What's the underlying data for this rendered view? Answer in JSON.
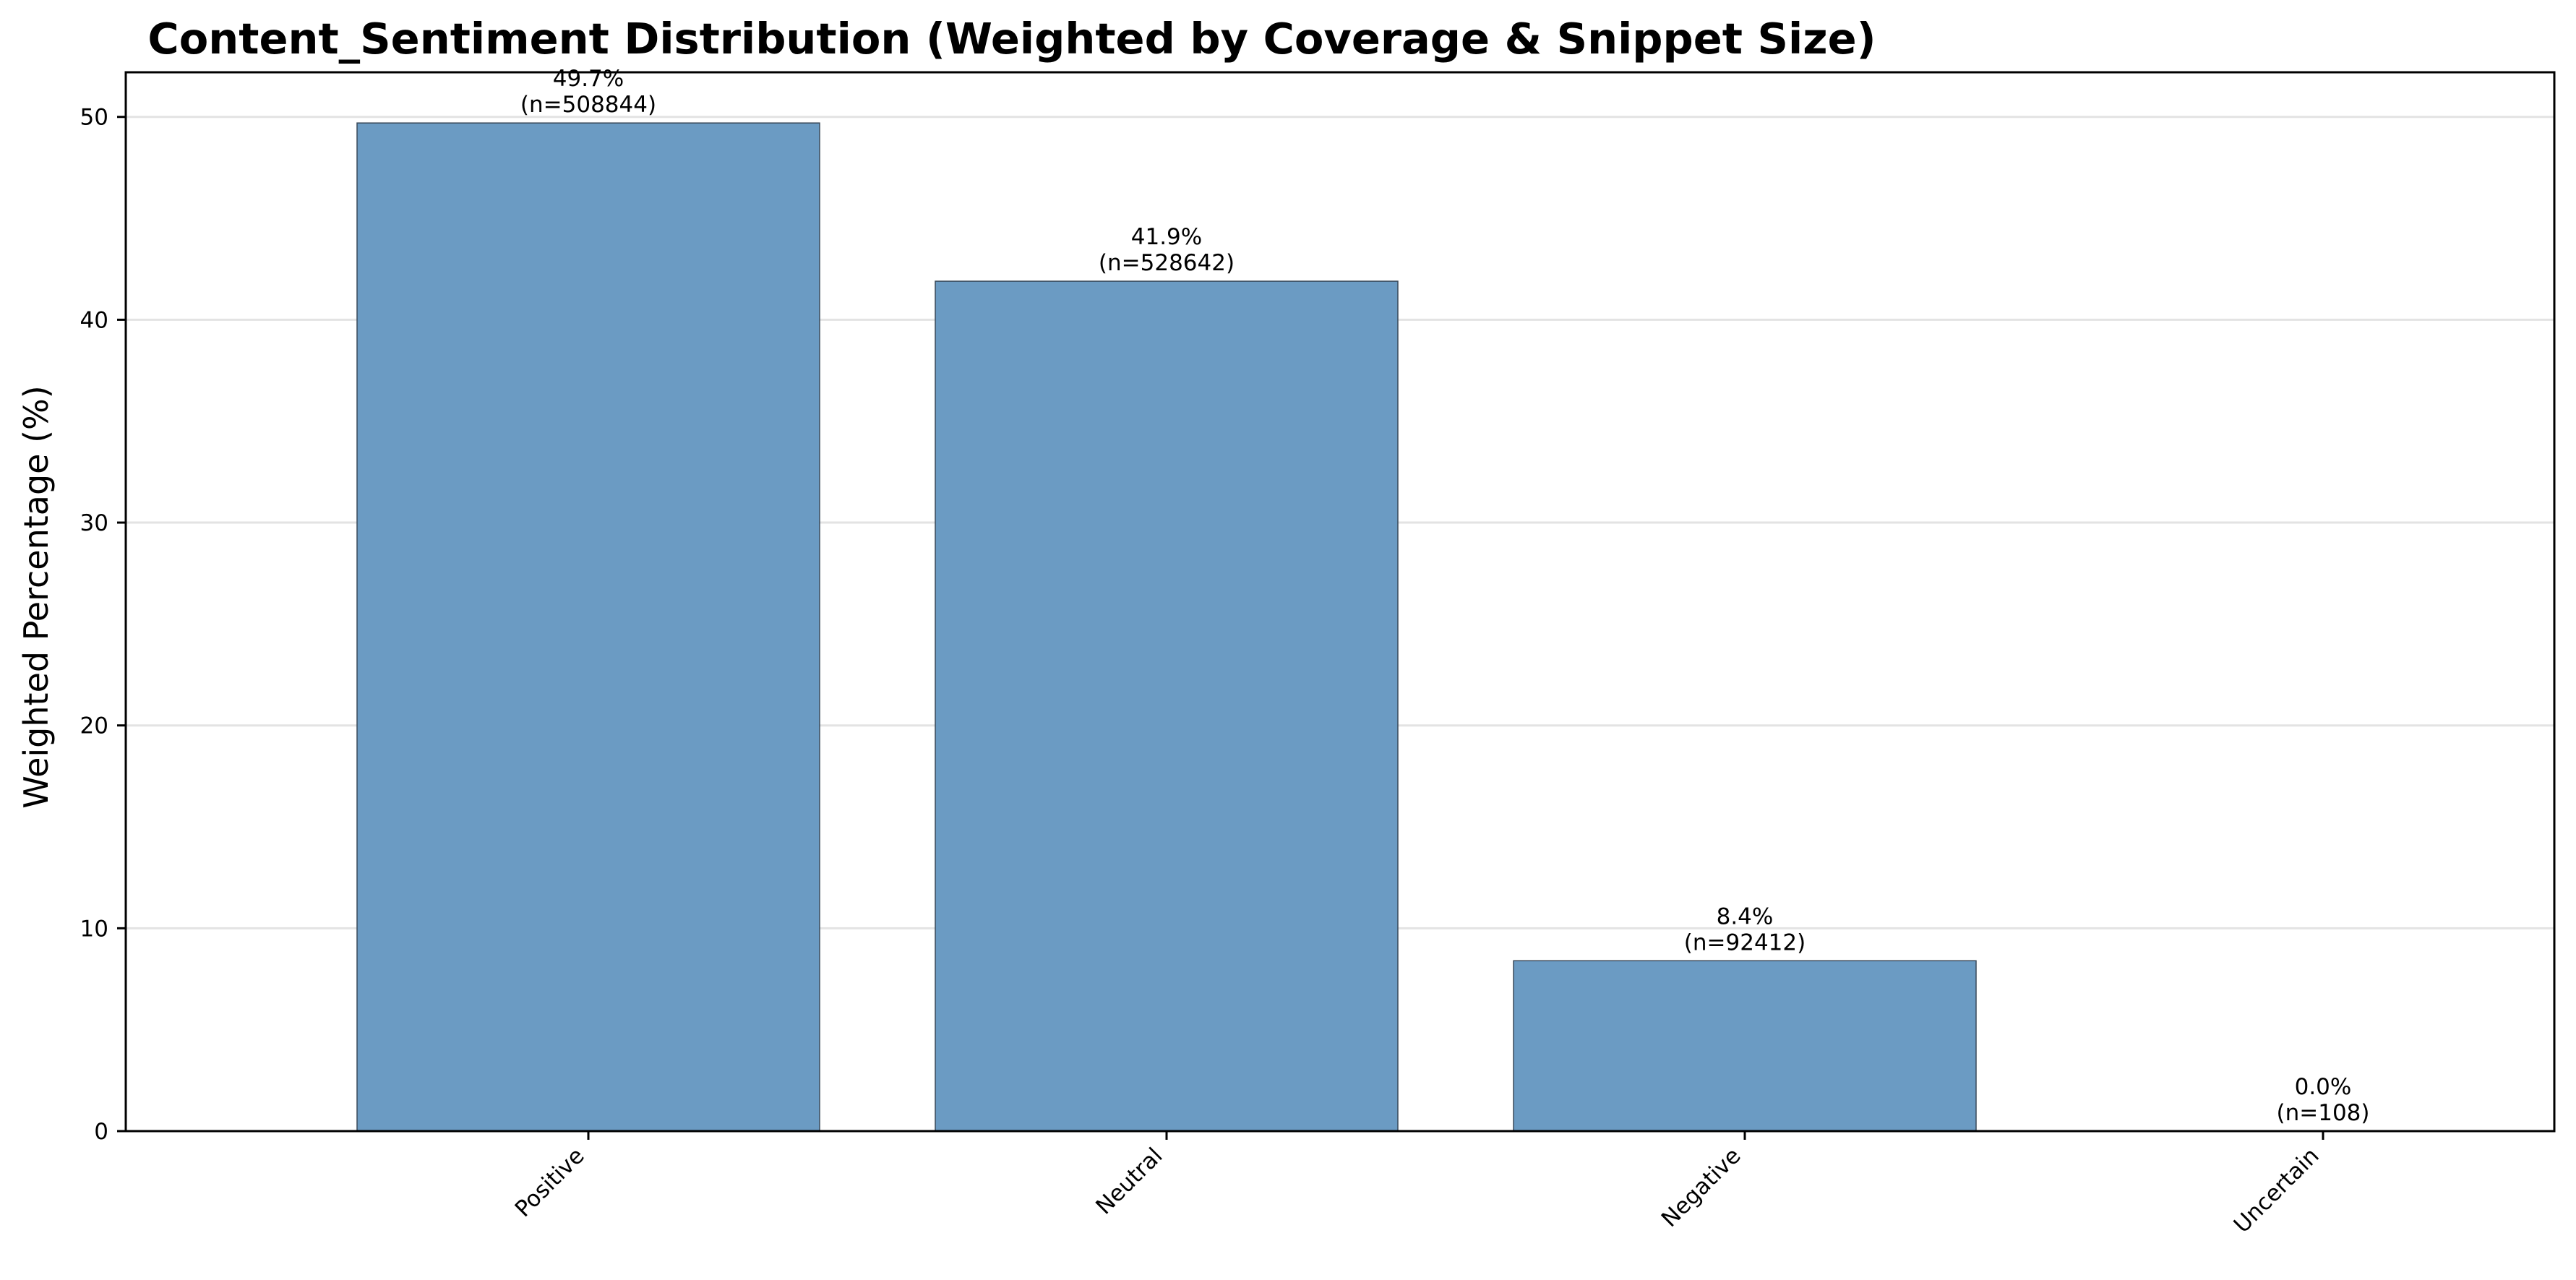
{
  "chart_data": {
    "type": "bar",
    "title": "Content_Sentiment Distribution (Weighted by Coverage & Snippet Size)",
    "xlabel": "",
    "ylabel": "Weighted Percentage (%)",
    "categories": [
      "Positive",
      "Neutral",
      "Negative",
      "Uncertain"
    ],
    "values": [
      49.7,
      41.9,
      8.4,
      0.0
    ],
    "counts": [
      508844,
      528642,
      92412,
      108
    ],
    "data_labels": [
      [
        "49.7%",
        "(n=508844)"
      ],
      [
        "41.9%",
        "(n=528642)"
      ],
      [
        "8.4%",
        "(n=92412)"
      ],
      [
        "0.0%",
        "(n=108)"
      ]
    ],
    "ylim": [
      0,
      52.2
    ],
    "yticks": [
      0,
      10,
      20,
      30,
      40,
      50
    ],
    "ytick_labels": [
      "0",
      "10",
      "20",
      "30",
      "40",
      "50"
    ],
    "grid": "y-axis only",
    "xtick_rotation": 45,
    "bar_color": "#6b9bc3",
    "bar_edge_color": "#3a4a5a"
  }
}
